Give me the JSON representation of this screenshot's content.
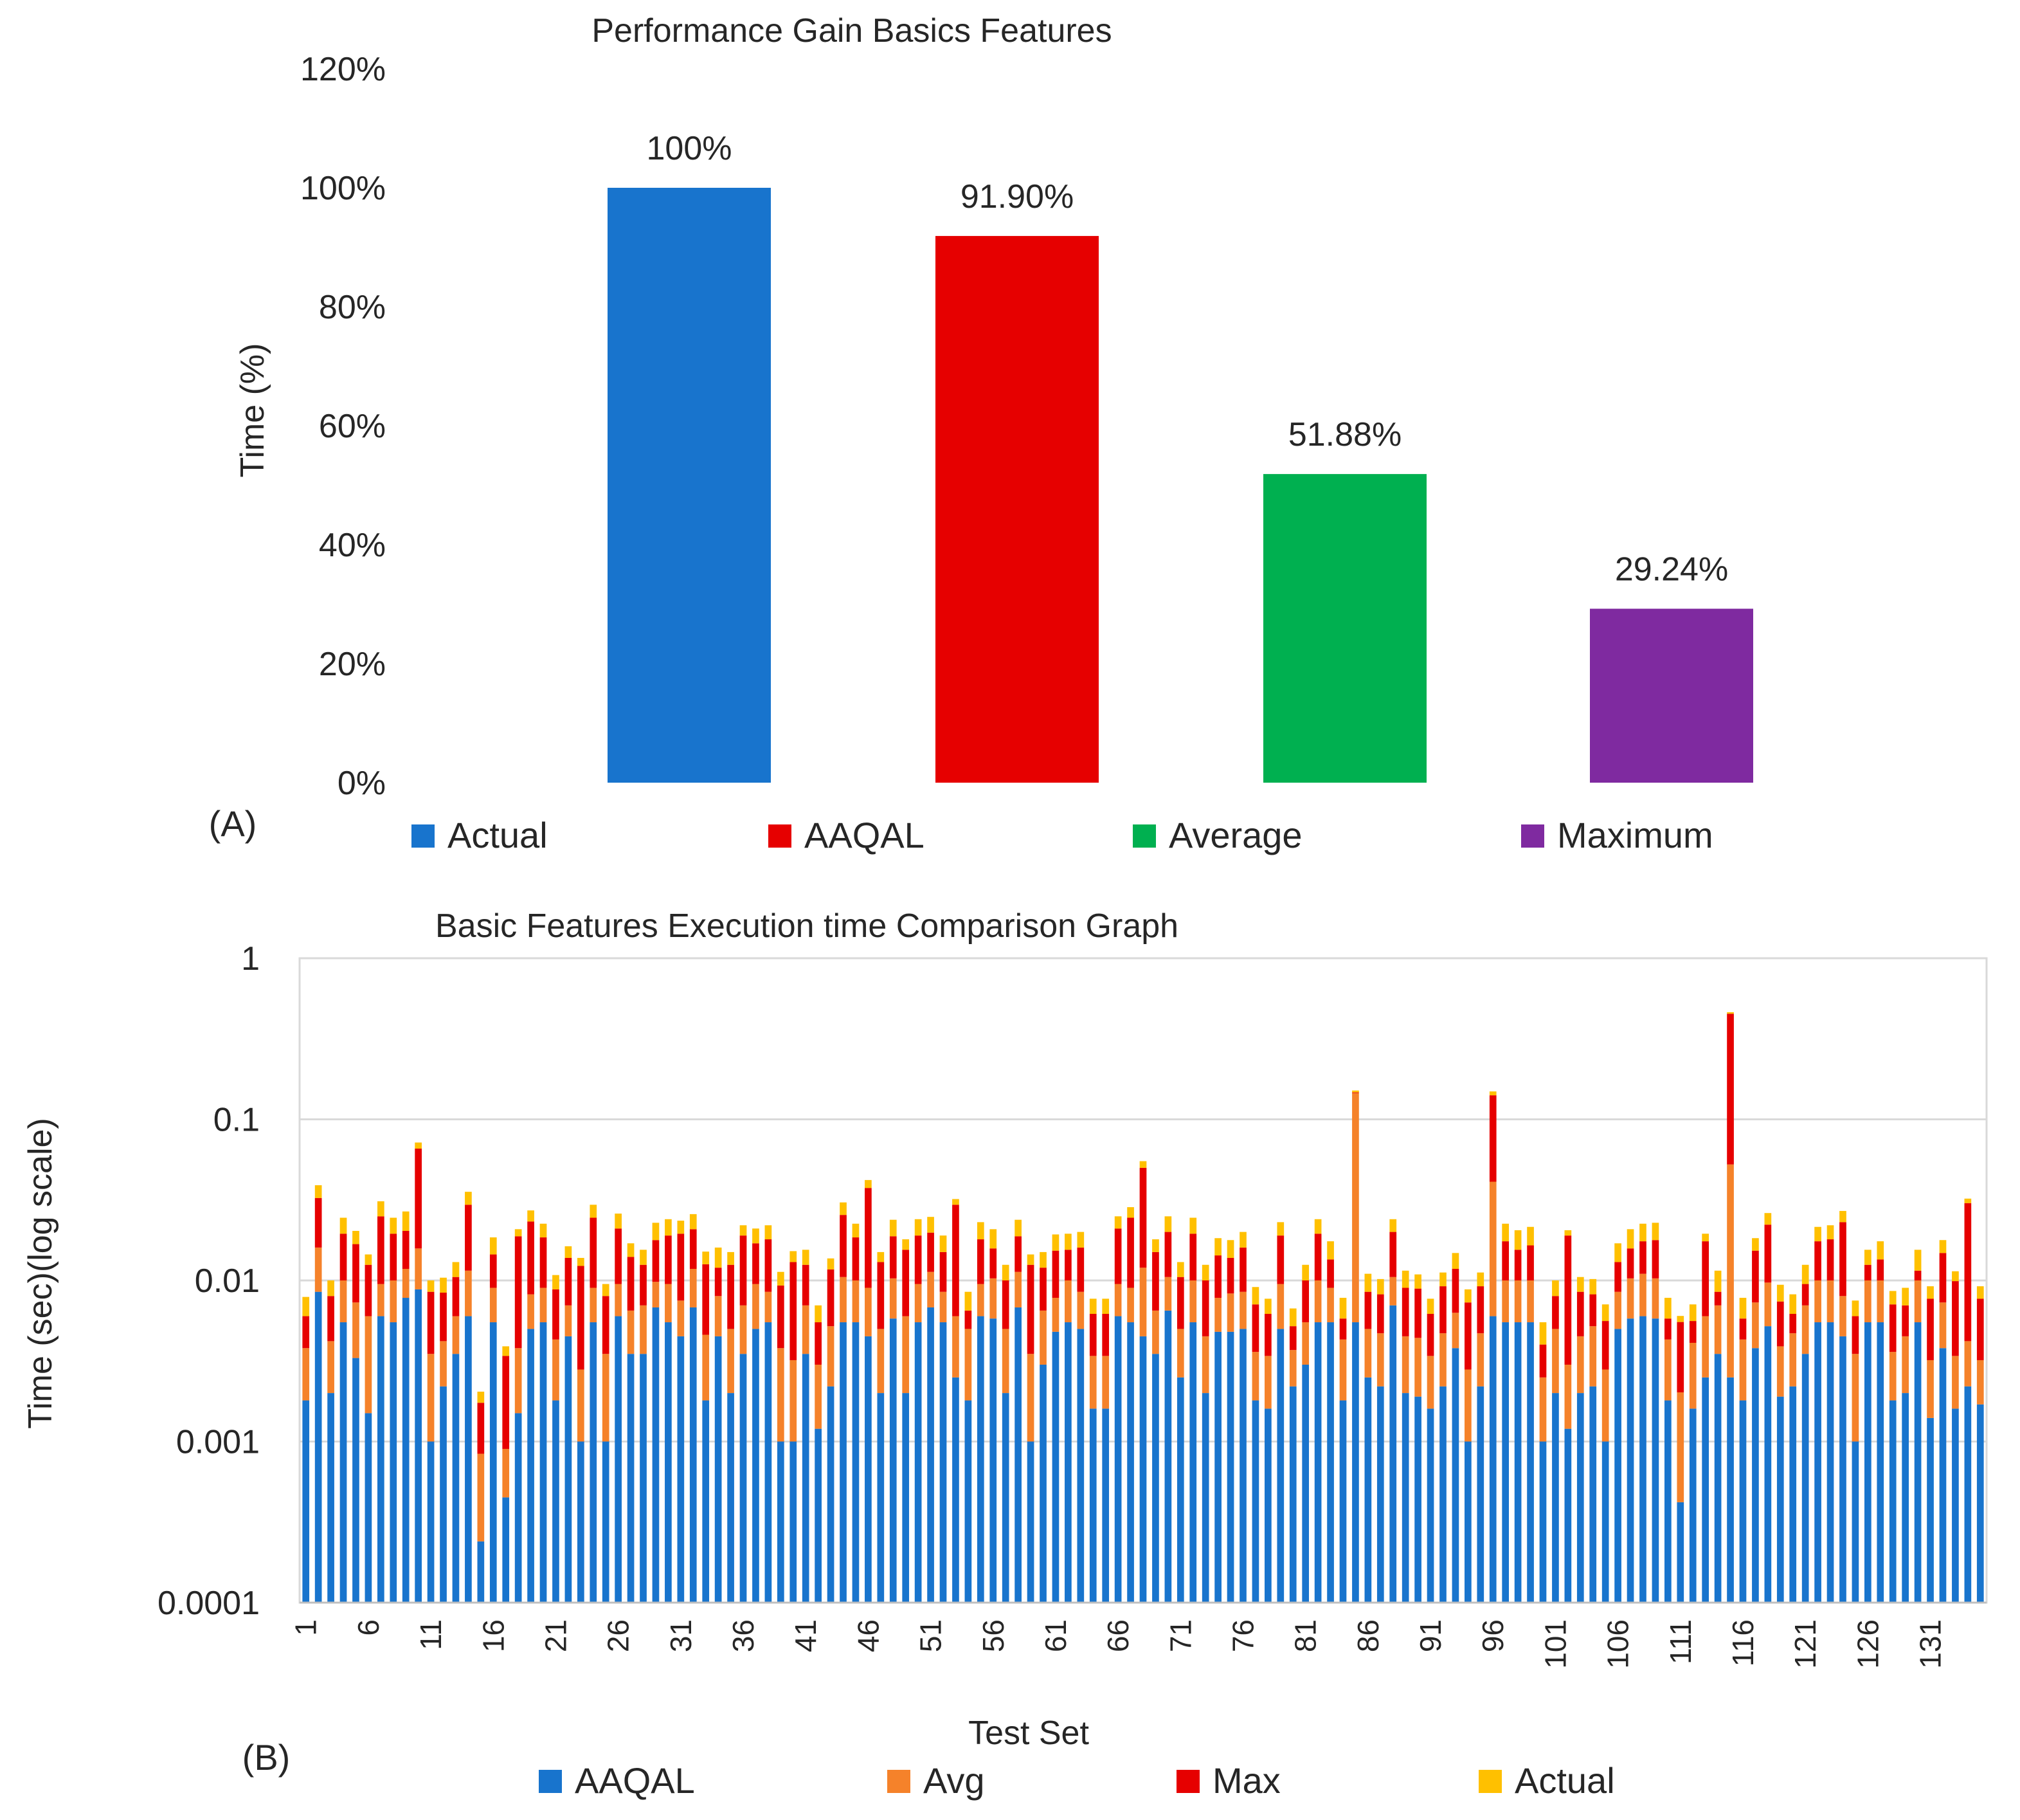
{
  "chart_data": [
    {
      "type": "bar",
      "panel_label": "(A)",
      "title": "Performance Gain Basics Features",
      "xlabel": "",
      "ylabel": "Time (%)",
      "ylim": [
        0,
        120
      ],
      "yticks": [
        0,
        20,
        40,
        60,
        80,
        100,
        120
      ],
      "ytick_labels": [
        "0%",
        "20%",
        "40%",
        "60%",
        "80%",
        "100%",
        "120%"
      ],
      "categories": [
        "Actual",
        "AAQAL",
        "Average",
        "Maximum"
      ],
      "values": [
        100,
        91.9,
        51.88,
        29.24
      ],
      "data_labels": [
        "100%",
        "91.90%",
        "51.88%",
        "29.24%"
      ],
      "colors": [
        "#1874cd",
        "#e60000",
        "#00b050",
        "#7f2aa0"
      ],
      "legend": [
        "Actual",
        "AAQAL",
        "Average",
        "Maximum"
      ],
      "legend_position": "bottom",
      "grid": false
    },
    {
      "type": "bar",
      "stacked": true,
      "yscale": "log",
      "panel_label": "(B)",
      "title": "Basic Features Execution time Comparison Graph",
      "xlabel": "Test Set",
      "ylabel": "Time (sec)(log scale)",
      "ylim": [
        0.0001,
        1
      ],
      "yticks": [
        0.0001,
        0.001,
        0.01,
        0.1,
        1
      ],
      "ytick_labels": [
        "0.0001",
        "0.001",
        "0.01",
        "0.1",
        "1"
      ],
      "xtick_labels": [
        "1",
        "6",
        "11",
        "16",
        "21",
        "26",
        "31",
        "36",
        "41",
        "46",
        "51",
        "56",
        "61",
        "66",
        "71",
        "76",
        "81",
        "86",
        "91",
        "96",
        "101",
        "106",
        "111",
        "116",
        "121",
        "126",
        "131"
      ],
      "x_start": 1,
      "x_end": 135,
      "legend_position": "bottom",
      "grid": true,
      "series": [
        {
          "name": "AAQAL",
          "color": "#1874cd",
          "values": [
            0.0018,
            0.0085,
            0.002,
            0.0055,
            0.0033,
            0.0015,
            0.006,
            0.0055,
            0.0078,
            0.0088,
            0.001,
            0.0022,
            0.0035,
            0.006,
            0.00024,
            0.0055,
            0.00045,
            0.0015,
            0.005,
            0.0055,
            0.0018,
            0.0045,
            0.001,
            0.0055,
            0.001,
            0.006,
            0.0035,
            0.0035,
            0.0068,
            0.0055,
            0.0045,
            0.0068,
            0.0018,
            0.0045,
            0.002,
            0.0035,
            0.005,
            0.0055,
            0.001,
            0.001,
            0.0035,
            0.0012,
            0.0022,
            0.0055,
            0.0055,
            0.0045,
            0.002,
            0.0058,
            0.002,
            0.0055,
            0.0068,
            0.0055,
            0.0025,
            0.0018,
            0.006,
            0.0058,
            0.002,
            0.0068,
            0.001,
            0.003,
            0.0048,
            0.0055,
            0.005,
            0.0016,
            0.0016,
            0.006,
            0.0055,
            0.0045,
            0.0035,
            0.0065,
            0.0025,
            0.0055,
            0.002,
            0.0048,
            0.0048,
            0.005,
            0.0018,
            0.0016,
            0.005,
            0.0022,
            0.003,
            0.0055,
            0.0055,
            0.0018,
            0.0055,
            0.0025,
            0.0022,
            0.007,
            0.002,
            0.0019,
            0.0016,
            0.0022,
            0.0038,
            0.001,
            0.0022,
            0.006,
            0.0055,
            0.0055,
            0.0055,
            0.001,
            0.002,
            0.0012,
            0.002,
            0.0022,
            0.001,
            0.005,
            0.0058,
            0.006,
            0.0058,
            0.0018,
            0.00042,
            0.0016,
            0.0025,
            0.0035,
            0.0025,
            0.0018,
            0.0038,
            0.0052,
            0.0019,
            0.0022,
            0.0035,
            0.0055,
            0.0055,
            0.0045,
            0.001,
            0.0055,
            0.0055,
            0.0018,
            0.002,
            0.0055,
            0.0014,
            0.0038,
            0.0016,
            0.0022,
            0.0017,
            0.006
          ]
        },
        {
          "name": "Avg",
          "color": "#f5822a",
          "values": [
            0.002,
            0.0075,
            0.0022,
            0.0045,
            0.004,
            0.0045,
            0.0035,
            0.0045,
            0.004,
            0.007,
            0.0025,
            0.002,
            0.0025,
            0.0055,
            0.0006,
            0.0035,
            0.00045,
            0.0023,
            0.0032,
            0.0035,
            0.0025,
            0.0025,
            0.0018,
            0.0035,
            0.0025,
            0.0035,
            0.003,
            0.0035,
            0.003,
            0.004,
            0.003,
            0.005,
            0.0028,
            0.0035,
            0.003,
            0.0035,
            0.0045,
            0.003,
            0.0028,
            0.0022,
            0.0035,
            0.0018,
            0.003,
            0.005,
            0.0045,
            0.0045,
            0.003,
            0.0045,
            0.004,
            0.004,
            0.0045,
            0.003,
            0.0035,
            0.0032,
            0.0035,
            0.0045,
            0.003,
            0.0045,
            0.0025,
            0.0035,
            0.003,
            0.0045,
            0.0035,
            0.0018,
            0.0018,
            0.0035,
            0.0035,
            0.0075,
            0.003,
            0.004,
            0.0025,
            0.0045,
            0.0025,
            0.003,
            0.0035,
            0.0035,
            0.0018,
            0.0018,
            0.0045,
            0.0015,
            0.0025,
            0.0045,
            0.0035,
            0.0025,
            0.14,
            0.0025,
            0.0025,
            0.0035,
            0.0025,
            0.0025,
            0.0018,
            0.0025,
            0.0025,
            0.0018,
            0.0025,
            0.035,
            0.0045,
            0.0045,
            0.0045,
            0.0015,
            0.003,
            0.0018,
            0.0025,
            0.003,
            0.0018,
            0.0035,
            0.0045,
            0.005,
            0.0045,
            0.0025,
            0.0016,
            0.0025,
            0.0035,
            0.0035,
            0.05,
            0.0025,
            0.0035,
            0.0045,
            0.002,
            0.0025,
            0.0035,
            0.0045,
            0.0045,
            0.0035,
            0.0025,
            0.0045,
            0.0045,
            0.0018,
            0.0025,
            0.0045,
            0.0018,
            0.0035,
            0.0018,
            0.002,
            0.0015,
            0.005
          ]
        },
        {
          "name": "Max",
          "color": "#e60000",
          "values": [
            0.0022,
            0.0165,
            0.0038,
            0.0095,
            0.0095,
            0.0065,
            0.0155,
            0.0095,
            0.0085,
            0.05,
            0.005,
            0.0042,
            0.0045,
            0.018,
            0.0009,
            0.0055,
            0.0025,
            0.015,
            0.015,
            0.0095,
            0.0045,
            0.0068,
            0.0095,
            0.0155,
            0.0045,
            0.0115,
            0.0075,
            0.0055,
            0.008,
            0.0095,
            0.012,
            0.009,
            0.008,
            0.004,
            0.0075,
            0.012,
            0.0075,
            0.0095,
            0.0055,
            0.0098,
            0.0055,
            0.0025,
            0.0065,
            0.015,
            0.0085,
            0.0285,
            0.008,
            0.0085,
            0.0095,
            0.0095,
            0.0085,
            0.0065,
            0.0235,
            0.0015,
            0.0085,
            0.0055,
            0.005,
            0.0075,
            0.009,
            0.0055,
            0.0075,
            0.0055,
            0.0075,
            0.0028,
            0.0028,
            0.0115,
            0.0155,
            0.038,
            0.0085,
            0.0095,
            0.0055,
            0.0095,
            0.0055,
            0.0065,
            0.0055,
            0.0075,
            0.0035,
            0.0028,
            0.0095,
            0.0015,
            0.0045,
            0.0095,
            0.0045,
            0.0015,
            0.0015,
            0.0035,
            0.0035,
            0.0095,
            0.0045,
            0.0045,
            0.0028,
            0.0045,
            0.0055,
            0.0045,
            0.0045,
            0.1,
            0.0075,
            0.0055,
            0.0065,
            0.0015,
            0.003,
            0.016,
            0.004,
            0.003,
            0.0028,
            0.0045,
            0.0055,
            0.0065,
            0.0075,
            0.0015,
            0.0035,
            0.0015,
            0.0115,
            0.0015,
            0.4,
            0.0015,
            0.008,
            0.0125,
            0.0035,
            0.0015,
            0.0025,
            0.0075,
            0.008,
            0.015,
            0.0025,
            0.0025,
            0.0035,
            0.0035,
            0.0025,
            0.0015,
            0.0045,
            0.0075,
            0.0065,
            0.026,
            0.0045,
            0.0035
          ]
        },
        {
          "name": "Actual",
          "color": "#ffc000",
          "values": [
            0.0019,
            0.0065,
            0.002,
            0.005,
            0.0035,
            0.002,
            0.006,
            0.005,
            0.0065,
            0.006,
            0.0015,
            0.002,
            0.0025,
            0.006,
            0.0003,
            0.004,
            0.0005,
            0.002,
            0.004,
            0.004,
            0.002,
            0.0025,
            0.0015,
            0.005,
            0.0015,
            0.005,
            0.003,
            0.003,
            0.005,
            0.005,
            0.004,
            0.005,
            0.0025,
            0.004,
            0.0025,
            0.003,
            0.004,
            0.004,
            0.002,
            0.0022,
            0.003,
            0.0015,
            0.002,
            0.005,
            0.004,
            0.0045,
            0.002,
            0.005,
            0.0025,
            0.005,
            0.005,
            0.004,
            0.0025,
            0.002,
            0.005,
            0.005,
            0.0025,
            0.005,
            0.002,
            0.003,
            0.004,
            0.004,
            0.004,
            0.0015,
            0.0015,
            0.004,
            0.004,
            0.005,
            0.003,
            0.005,
            0.0025,
            0.005,
            0.0025,
            0.004,
            0.004,
            0.004,
            0.002,
            0.0015,
            0.004,
            0.0015,
            0.0025,
            0.0045,
            0.004,
            0.002,
            0.004,
            0.0025,
            0.002,
            0.004,
            0.0025,
            0.002,
            0.0015,
            0.002,
            0.003,
            0.0015,
            0.002,
            0.008,
            0.005,
            0.005,
            0.005,
            0.0015,
            0.002,
            0.0015,
            0.002,
            0.002,
            0.0015,
            0.004,
            0.005,
            0.005,
            0.005,
            0.002,
            0.0005,
            0.0015,
            0.002,
            0.003,
            0.01,
            0.002,
            0.003,
            0.004,
            0.002,
            0.002,
            0.003,
            0.004,
            0.004,
            0.004,
            0.0015,
            0.003,
            0.004,
            0.0015,
            0.002,
            0.004,
            0.0015,
            0.003,
            0.0015,
            0.002,
            0.0015,
            0.005
          ]
        }
      ]
    }
  ]
}
